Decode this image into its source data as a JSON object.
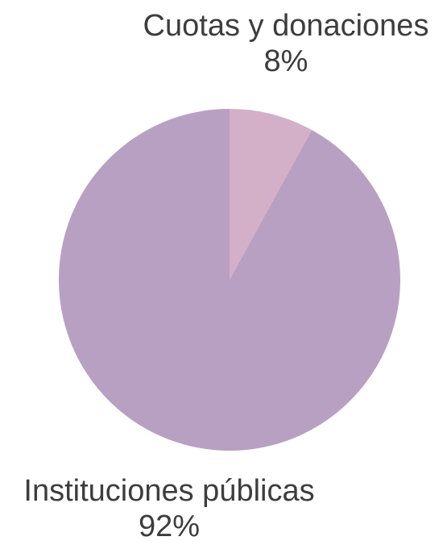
{
  "chart_data": {
    "type": "pie",
    "title": "",
    "slices": [
      {
        "label": "Cuotas y donaciones",
        "value": 8,
        "value_label": "8%",
        "color": "#d4b0c8"
      },
      {
        "label": "Instituciones públicas",
        "value": 92,
        "value_label": "92%",
        "color": "#b8a0c2"
      }
    ],
    "start_angle": "12 o'clock",
    "direction": "clockwise",
    "legend": "none (labels placed next to slices)"
  }
}
